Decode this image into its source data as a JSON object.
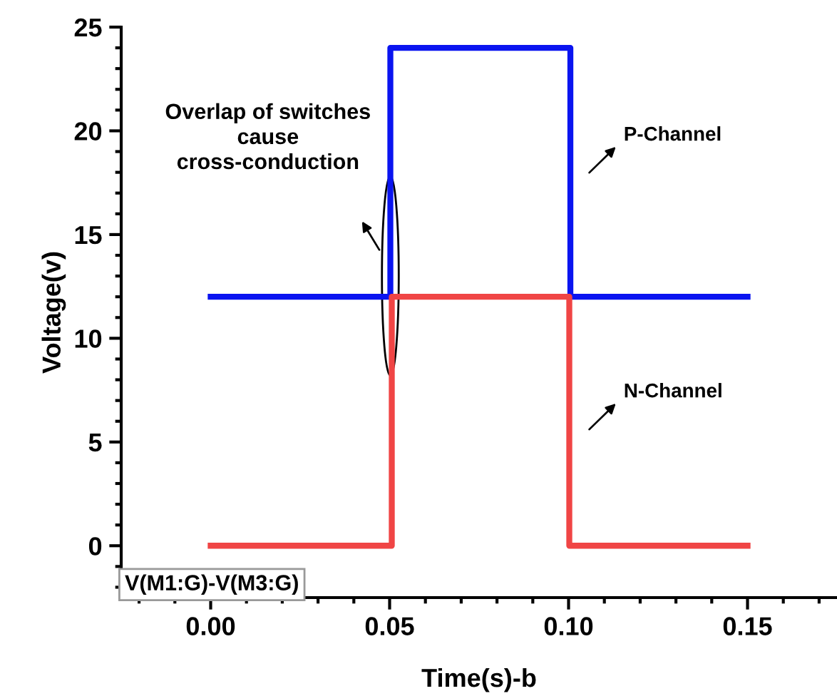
{
  "chart_data": {
    "type": "line",
    "xlabel": "Time(s)-b",
    "ylabel": "Voltage(v)",
    "xlim": [
      -0.025,
      0.175
    ],
    "xticks": [
      {
        "value": 0,
        "label": "0.00"
      },
      0.05,
      {
        "value": 0.1,
        "label": "0.10"
      },
      0.15
    ],
    "ylim": [
      -2.5,
      25
    ],
    "yticks": [
      0,
      5,
      10,
      15,
      20,
      25
    ],
    "grid": false,
    "legend": false,
    "line_style": "solid",
    "marker": "none",
    "series": [
      {
        "name": "P-Channel",
        "color": "#0a14f0",
        "x": [
          0,
          0.0502,
          0.0502,
          0.1005,
          0.1005,
          0.15
        ],
        "values": [
          12,
          12,
          24,
          24,
          12,
          12
        ]
      },
      {
        "name": "N-Channel",
        "color": "#f04545",
        "x": [
          0,
          0.0506,
          0.0506,
          0.1002,
          0.1002,
          0.15
        ],
        "values": [
          0,
          0,
          12,
          12,
          0,
          0
        ]
      }
    ],
    "annotations": [
      "Overlap of switches\ncause\ncross-conduction",
      "V(M1:G)-V(M3:G)"
    ]
  }
}
